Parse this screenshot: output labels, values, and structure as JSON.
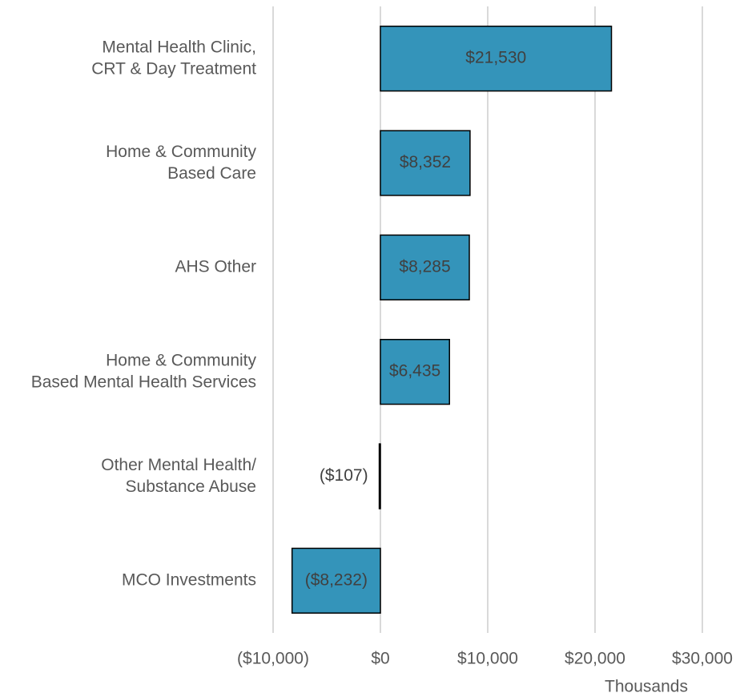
{
  "chart_data": {
    "type": "barh",
    "categories": [
      "Mental Health Clinic,\nCRT & Day Treatment",
      "Home & Community\nBased Care",
      "AHS Other",
      "Home & Community\nBased Mental Health Services",
      "Other Mental Health/\nSubstance Abuse",
      "MCO Investments"
    ],
    "values": [
      21530,
      8352,
      8285,
      6435,
      -107,
      -8232
    ],
    "value_labels": [
      "$21,530",
      "$8,352",
      "$8,285",
      "$6,435",
      "($107)",
      "($8,232)"
    ],
    "color": "#3494ba",
    "xlim": [
      -10000,
      30000
    ],
    "xticks": [
      {
        "value": -10000,
        "label": "($10,000)"
      },
      {
        "value": 0,
        "label": "$0"
      },
      {
        "value": 10000,
        "label": "$10,000"
      },
      {
        "value": 20000,
        "label": "$20,000"
      },
      {
        "value": 30000,
        "label": "$30,000"
      }
    ],
    "xlabel": "Thousands",
    "grid": true
  }
}
